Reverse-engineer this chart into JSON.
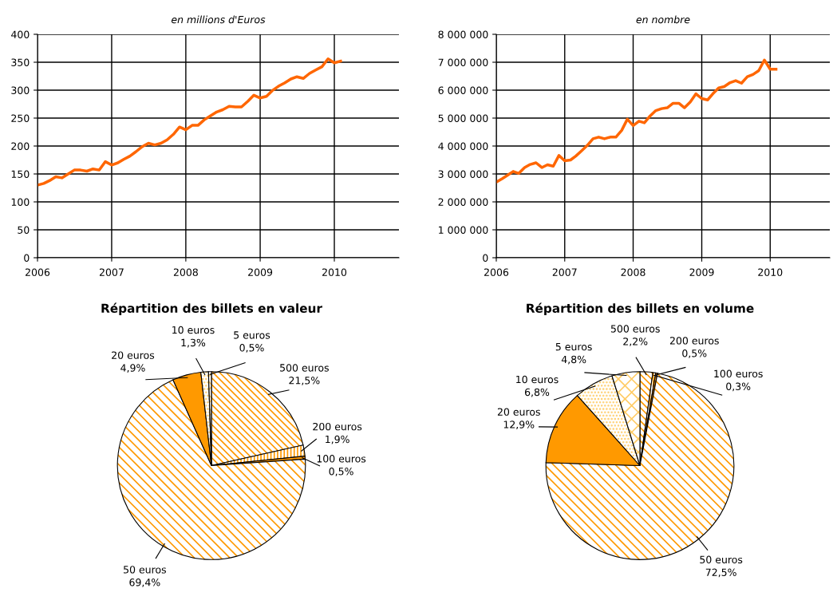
{
  "chart_data": [
    {
      "type": "line",
      "title": "en millions d'Euros",
      "x": [
        "2006-01",
        "2006-02",
        "2006-03",
        "2006-04",
        "2006-05",
        "2006-06",
        "2006-07",
        "2006-08",
        "2006-09",
        "2006-10",
        "2006-11",
        "2006-12",
        "2007-01",
        "2007-02",
        "2007-03",
        "2007-04",
        "2007-05",
        "2007-06",
        "2007-07",
        "2007-08",
        "2007-09",
        "2007-10",
        "2007-11",
        "2007-12",
        "2008-01",
        "2008-02",
        "2008-03",
        "2008-04",
        "2008-05",
        "2008-06",
        "2008-07",
        "2008-08",
        "2008-09",
        "2008-10",
        "2008-11",
        "2008-12",
        "2009-01",
        "2009-02",
        "2009-03",
        "2009-04",
        "2009-05",
        "2009-06",
        "2009-07",
        "2009-08",
        "2009-09",
        "2009-10",
        "2009-11",
        "2009-12",
        "2010-01",
        "2010-02"
      ],
      "series": [
        {
          "color": "#ff6600",
          "values": [
            130,
            133,
            138,
            145,
            143,
            150,
            157,
            157,
            155,
            159,
            157,
            172,
            166,
            170,
            176,
            182,
            190,
            199,
            205,
            202,
            205,
            211,
            221,
            234,
            229,
            237,
            237,
            247,
            254,
            261,
            265,
            271,
            270,
            270,
            280,
            291,
            286,
            289,
            299,
            307,
            313,
            320,
            324,
            321,
            330,
            336,
            342,
            356,
            349,
            352
          ]
        }
      ],
      "xlim": [
        "2006-01-01",
        "2010-11-15"
      ],
      "xticks": [
        {
          "value": "2006-01-01",
          "label": "2006"
        },
        {
          "value": "2007-01-01",
          "label": "2007"
        },
        {
          "value": "2008-01-01",
          "label": "2008"
        },
        {
          "value": "2009-01-01",
          "label": "2009"
        },
        {
          "value": "2010-01-01",
          "label": "2010"
        }
      ],
      "ylim": [
        0,
        400
      ],
      "yticks": [
        0,
        50,
        100,
        150,
        200,
        250,
        300,
        350,
        400
      ],
      "grid": true,
      "marker": "none",
      "line_style": "solid"
    },
    {
      "type": "line",
      "title": "en nombre",
      "x": [
        "2006-01",
        "2006-02",
        "2006-03",
        "2006-04",
        "2006-05",
        "2006-06",
        "2006-07",
        "2006-08",
        "2006-09",
        "2006-10",
        "2006-11",
        "2006-12",
        "2007-01",
        "2007-02",
        "2007-03",
        "2007-04",
        "2007-05",
        "2007-06",
        "2007-07",
        "2007-08",
        "2007-09",
        "2007-10",
        "2007-11",
        "2007-12",
        "2008-01",
        "2008-02",
        "2008-03",
        "2008-04",
        "2008-05",
        "2008-06",
        "2008-07",
        "2008-08",
        "2008-09",
        "2008-10",
        "2008-11",
        "2008-12",
        "2009-01",
        "2009-02",
        "2009-03",
        "2009-04",
        "2009-05",
        "2009-06",
        "2009-07",
        "2009-08",
        "2009-09",
        "2009-10",
        "2009-11",
        "2009-12",
        "2010-01",
        "2010-02"
      ],
      "series": [
        {
          "color": "#ff6600",
          "values": [
            2710000,
            2830000,
            2950000,
            3090000,
            3020000,
            3230000,
            3340000,
            3400000,
            3230000,
            3330000,
            3280000,
            3660000,
            3470000,
            3500000,
            3640000,
            3830000,
            4020000,
            4260000,
            4320000,
            4260000,
            4320000,
            4320000,
            4560000,
            4960000,
            4730000,
            4890000,
            4830000,
            5080000,
            5270000,
            5340000,
            5370000,
            5530000,
            5530000,
            5370000,
            5580000,
            5870000,
            5700000,
            5650000,
            5870000,
            6080000,
            6130000,
            6270000,
            6340000,
            6250000,
            6480000,
            6560000,
            6700000,
            7080000,
            6750000,
            6750000
          ]
        }
      ],
      "xlim": [
        "2006-01-01",
        "2010-11-15"
      ],
      "xticks": [
        {
          "value": "2006-01-01",
          "label": "2006"
        },
        {
          "value": "2007-01-01",
          "label": "2007"
        },
        {
          "value": "2008-01-01",
          "label": "2008"
        },
        {
          "value": "2009-01-01",
          "label": "2009"
        },
        {
          "value": "2010-01-01",
          "label": "2010"
        }
      ],
      "ylim": [
        0,
        8000000
      ],
      "yticks": [
        0,
        {
          "value": 1000000,
          "label": "1 000 000"
        },
        {
          "value": 2000000,
          "label": "2 000 000"
        },
        {
          "value": 3000000,
          "label": "3 000 000"
        },
        {
          "value": 4000000,
          "label": "4 000 000"
        },
        {
          "value": 5000000,
          "label": "5 000 000"
        },
        {
          "value": 6000000,
          "label": "6 000 000"
        },
        {
          "value": 7000000,
          "label": "7 000 000"
        },
        {
          "value": 8000000,
          "label": "8 000 000"
        }
      ],
      "grid": true,
      "marker": "none",
      "line_style": "solid"
    },
    {
      "type": "pie",
      "title": "Répartition des billets en valeur",
      "categories": [
        "500 euros",
        "200 euros",
        "100 euros",
        "50 euros",
        "20 euros",
        "10 euros",
        "5 euros"
      ],
      "values": [
        21.5,
        1.9,
        0.5,
        69.4,
        4.9,
        1.3,
        0.5
      ],
      "value_labels": [
        "21,5%",
        "1,9%",
        "0,5%",
        "69,4%",
        "4,9%",
        "1,3%",
        "0,5%"
      ],
      "colors": [
        "#ff9900",
        "#ff9900",
        "#ff9900",
        "#ff9900",
        "#ff9900",
        "#ffcc66",
        "#ffcc66"
      ]
    },
    {
      "type": "pie",
      "title": "Répartition des billets en volume",
      "categories": [
        "500 euros",
        "200 euros",
        "100 euros",
        "50 euros",
        "20 euros",
        "10 euros",
        "5 euros"
      ],
      "values": [
        2.2,
        0.5,
        0.3,
        72.5,
        12.9,
        6.8,
        4.8
      ],
      "value_labels": [
        "2,2%",
        "0,5%",
        "0,3%",
        "72,5%",
        "12,9%",
        "6,8%",
        "4,8%"
      ],
      "colors": [
        "#ff9900",
        "#ff9900",
        "#ff9900",
        "#ff9900",
        "#ff9900",
        "#ffcc66",
        "#ffcc66"
      ]
    }
  ]
}
